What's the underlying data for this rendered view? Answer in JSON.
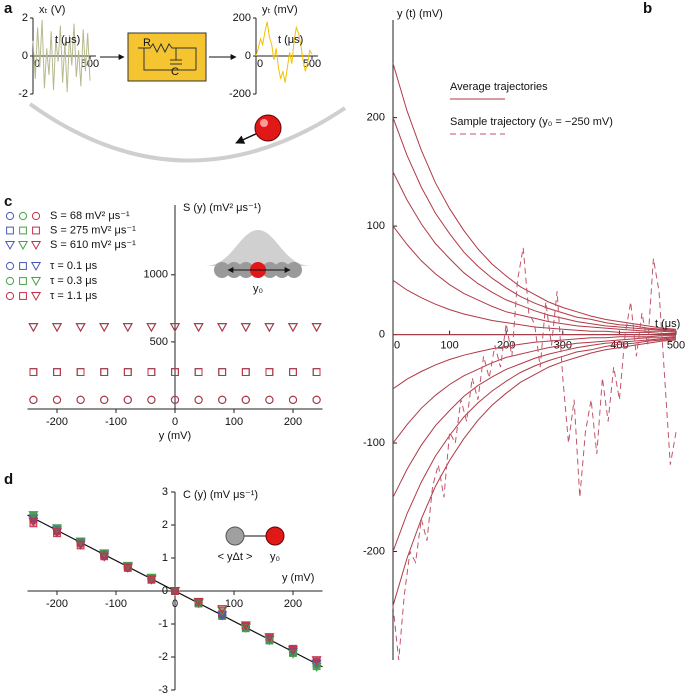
{
  "panel_labels": [
    "a",
    "b",
    "c",
    "d"
  ],
  "circuit": {
    "labels": [
      "R",
      "C"
    ]
  },
  "chart_data": [
    {
      "type": "line",
      "ylabel": "xₜ (V)",
      "xlabel": "t (μs)",
      "color": "#b7b98e",
      "x": [
        0,
        20,
        40,
        60,
        80,
        100,
        120,
        140,
        160,
        180,
        200,
        220,
        240,
        260,
        280,
        300,
        320,
        340,
        360,
        380,
        400,
        420,
        440,
        460,
        480,
        500
      ],
      "values": [
        0.8,
        -1.2,
        1.5,
        -0.6,
        1.9,
        -1.7,
        0.4,
        -1.0,
        1.3,
        -1.8,
        0.9,
        -0.3,
        1.6,
        -1.4,
        0.7,
        -1.9,
        1.1,
        -0.5,
        1.7,
        -1.1,
        0.3,
        -1.6,
        1.4,
        -0.8,
        1.2,
        -1.3
      ],
      "xlim": [
        0,
        500
      ],
      "ylim": [
        -2,
        2
      ],
      "xticks": [
        0,
        500
      ],
      "yticks": [
        -2,
        0,
        2
      ]
    },
    {
      "type": "line",
      "ylabel": "yₜ (mV)",
      "xlabel": "t (μs)",
      "color": "#f2c200",
      "x": [
        0,
        20,
        40,
        60,
        80,
        100,
        120,
        140,
        160,
        180,
        200,
        220,
        240,
        260,
        280,
        300,
        320,
        340,
        360,
        380,
        400,
        420,
        440,
        460,
        480,
        500
      ],
      "values": [
        0,
        40,
        90,
        60,
        130,
        180,
        100,
        60,
        -20,
        40,
        -60,
        -120,
        -80,
        -140,
        -60,
        20,
        -40,
        80,
        150,
        120,
        60,
        -20,
        -80,
        -40,
        30,
        10
      ],
      "xlim": [
        0,
        500
      ],
      "ylim": [
        -200,
        200
      ],
      "xticks": [
        0,
        500
      ],
      "yticks": [
        -200,
        0,
        200
      ]
    },
    {
      "type": "line",
      "ylabel": "y (t) (mV)",
      "xlabel": "t (μs)",
      "x": [
        0,
        25,
        50,
        75,
        100,
        125,
        150,
        175,
        200,
        225,
        250,
        275,
        300,
        325,
        350,
        375,
        400,
        425,
        450,
        475,
        500
      ],
      "xlim": [
        0,
        500
      ],
      "ylim": [
        -300,
        290
      ],
      "xticks": [
        0,
        100,
        200,
        300,
        400,
        500
      ],
      "yticks": [
        -200,
        -100,
        0,
        100,
        200
      ],
      "series": [
        {
          "name": "Average trajectories",
          "color": "#b03a48",
          "trajectories": [
            [
              250,
              206,
              170,
              140,
              116,
              96,
              79,
              65,
              54,
              44,
              37,
              30,
              25,
              21,
              17,
              14,
              12,
              10,
              8,
              6,
              5
            ],
            [
              200,
              165,
              136,
              112,
              93,
              76,
              63,
              52,
              43,
              35,
              29,
              24,
              20,
              16,
              14,
              11,
              9,
              8,
              6,
              5,
              4
            ],
            [
              150,
              124,
              102,
              84,
              70,
              57,
              47,
              39,
              32,
              27,
              22,
              18,
              15,
              12,
              10,
              8,
              7,
              6,
              5,
              4,
              3
            ],
            [
              100,
              83,
              68,
              56,
              46,
              38,
              32,
              26,
              21,
              18,
              15,
              12,
              10,
              8,
              7,
              6,
              5,
              4,
              3,
              3,
              2
            ],
            [
              50,
              41,
              34,
              28,
              23,
              19,
              16,
              13,
              11,
              9,
              7,
              6,
              5,
              4,
              3,
              3,
              2,
              2,
              2,
              1,
              1
            ],
            [
              0,
              0,
              0,
              0,
              0,
              0,
              0,
              0,
              0,
              0,
              0,
              0,
              0,
              0,
              0,
              0,
              0,
              0,
              0,
              0,
              0
            ],
            [
              -50,
              -41,
              -34,
              -28,
              -23,
              -19,
              -16,
              -13,
              -11,
              -9,
              -7,
              -6,
              -5,
              -4,
              -3,
              -3,
              -2,
              -2,
              -2,
              -1,
              -1
            ],
            [
              -100,
              -83,
              -68,
              -56,
              -46,
              -38,
              -32,
              -26,
              -21,
              -18,
              -15,
              -12,
              -10,
              -8,
              -7,
              -6,
              -5,
              -4,
              -3,
              -3,
              -2
            ],
            [
              -150,
              -124,
              -102,
              -84,
              -70,
              -57,
              -47,
              -39,
              -32,
              -27,
              -22,
              -18,
              -15,
              -12,
              -10,
              -8,
              -7,
              -6,
              -5,
              -4,
              -3
            ],
            [
              -200,
              -165,
              -136,
              -112,
              -93,
              -76,
              -63,
              -52,
              -43,
              -35,
              -29,
              -24,
              -20,
              -16,
              -14,
              -11,
              -9,
              -8,
              -6,
              -5,
              -4
            ],
            [
              -250,
              -206,
              -170,
              -140,
              -116,
              -96,
              -79,
              -65,
              -54,
              -44,
              -37,
              -30,
              -25,
              -21,
              -17,
              -14,
              -12,
              -10,
              -8,
              -6,
              -5
            ]
          ]
        },
        {
          "name": "Sample trajectory (y₀ = −250 mV)",
          "color": "#c0566a",
          "dashed": true,
          "x": [
            0,
            10,
            20,
            30,
            40,
            50,
            60,
            70,
            80,
            90,
            100,
            110,
            120,
            130,
            140,
            150,
            160,
            170,
            180,
            190,
            200,
            210,
            220,
            230,
            240,
            250,
            260,
            270,
            280,
            290,
            300,
            310,
            320,
            330,
            340,
            350,
            360,
            370,
            380,
            390,
            400,
            410,
            420,
            430,
            440,
            450,
            460,
            470,
            480,
            490,
            500
          ],
          "values": [
            -250,
            -300,
            -240,
            -200,
            -210,
            -170,
            -190,
            -140,
            -120,
            -150,
            -90,
            -100,
            -60,
            -80,
            -40,
            -60,
            -20,
            -40,
            -10,
            -30,
            10,
            -20,
            50,
            80,
            20,
            10,
            -30,
            30,
            -10,
            40,
            -40,
            -100,
            -60,
            -150,
            -90,
            -60,
            -110,
            -40,
            -80,
            -30,
            -60,
            0,
            30,
            -20,
            20,
            -10,
            70,
            40,
            -40,
            -120,
            -90
          ]
        }
      ]
    },
    {
      "type": "scatter",
      "ylabel": "S (y) (mV² μs⁻¹)",
      "xlabel": "y (mV)",
      "inset_label": "y₀",
      "x": [
        -240,
        -200,
        -160,
        -120,
        -80,
        -40,
        0,
        40,
        80,
        120,
        160,
        200,
        240
      ],
      "xlim": [
        -250,
        250
      ],
      "ylim": [
        0,
        1520
      ],
      "xticks": [
        -200,
        -100,
        0,
        100,
        200
      ],
      "yticks": [
        500,
        1000
      ],
      "marker_legend": [
        {
          "label": "S = 68 mV² μs⁻¹",
          "marker": "circle"
        },
        {
          "label": "S = 275 mV² μs⁻¹",
          "marker": "square"
        },
        {
          "label": "S = 610 mV² μs⁻¹",
          "marker": "triangle"
        }
      ],
      "color_legend": [
        {
          "label": "τ = 0.1 μs",
          "color": "#4a58b8"
        },
        {
          "label": "τ = 0.3 μs",
          "color": "#46a046"
        },
        {
          "label": "τ = 1.1 μs",
          "color": "#c0304a"
        }
      ],
      "series": [
        {
          "marker": "circle",
          "color": "#4a58b8",
          "values": [
            68,
            68,
            68,
            68,
            68,
            68,
            68,
            68,
            68,
            68,
            68,
            68,
            68
          ]
        },
        {
          "marker": "circle",
          "color": "#46a046",
          "values": [
            68,
            68,
            68,
            68,
            68,
            68,
            68,
            68,
            68,
            68,
            68,
            68,
            68
          ]
        },
        {
          "marker": "circle",
          "color": "#c0304a",
          "values": [
            68,
            68,
            68,
            68,
            68,
            68,
            68,
            68,
            68,
            68,
            68,
            68,
            68
          ]
        },
        {
          "marker": "square",
          "color": "#4a58b8",
          "values": [
            275,
            275,
            275,
            275,
            275,
            275,
            275,
            275,
            275,
            275,
            275,
            275,
            275
          ]
        },
        {
          "marker": "square",
          "color": "#46a046",
          "values": [
            275,
            275,
            275,
            275,
            275,
            275,
            275,
            275,
            275,
            275,
            275,
            275,
            275
          ]
        },
        {
          "marker": "square",
          "color": "#c0304a",
          "values": [
            275,
            275,
            275,
            275,
            275,
            275,
            275,
            275,
            275,
            275,
            275,
            275,
            275
          ]
        },
        {
          "marker": "triangle",
          "color": "#4a58b8",
          "values": [
            610,
            610,
            610,
            610,
            610,
            610,
            610,
            610,
            610,
            610,
            610,
            610,
            610
          ]
        },
        {
          "marker": "triangle",
          "color": "#46a046",
          "values": [
            610,
            610,
            610,
            610,
            610,
            610,
            610,
            610,
            610,
            610,
            610,
            610,
            610
          ]
        },
        {
          "marker": "triangle",
          "color": "#c0304a",
          "values": [
            610,
            610,
            610,
            610,
            610,
            610,
            610,
            610,
            610,
            610,
            610,
            610,
            610
          ]
        }
      ]
    },
    {
      "type": "scatter",
      "ylabel": "C (y) (mV μs⁻¹)",
      "xlabel": "y (mV)",
      "inset_labels": [
        "< yΔt >",
        "y₀"
      ],
      "x": [
        -240,
        -200,
        -160,
        -120,
        -80,
        -40,
        0,
        40,
        80,
        120,
        160,
        200,
        240
      ],
      "xlim": [
        -250,
        250
      ],
      "ylim": [
        -3,
        3
      ],
      "xticks": [
        -200,
        -100,
        0,
        100,
        200
      ],
      "yticks": [
        -3,
        -2,
        -1,
        0,
        1,
        2,
        3
      ],
      "fit": {
        "x": [
          -250,
          250
        ],
        "values": [
          2.3,
          -2.3
        ],
        "color": "#111111"
      },
      "series": [
        {
          "marker": "circle",
          "color": "#4a58b8",
          "values": [
            2.2,
            1.84,
            1.47,
            1.1,
            0.74,
            0.37,
            0,
            -0.37,
            -0.74,
            -1.1,
            -1.47,
            -1.84,
            -2.2
          ]
        },
        {
          "marker": "circle",
          "color": "#46a046",
          "values": [
            2.25,
            1.86,
            1.45,
            1.12,
            0.72,
            0.38,
            0,
            -0.36,
            -0.75,
            -1.12,
            -1.48,
            -1.86,
            -2.25
          ]
        },
        {
          "marker": "circle",
          "color": "#c0304a",
          "values": [
            2.15,
            1.8,
            1.44,
            1.07,
            0.7,
            0.35,
            0,
            -0.35,
            -0.72,
            -1.05,
            -1.44,
            -1.8,
            -2.15
          ]
        },
        {
          "marker": "square",
          "color": "#4a58b8",
          "values": [
            2.2,
            1.85,
            1.48,
            1.1,
            0.74,
            0.37,
            0,
            -0.37,
            -0.74,
            -1.1,
            -1.48,
            -1.85,
            -2.2
          ]
        },
        {
          "marker": "square",
          "color": "#46a046",
          "values": [
            2.28,
            1.88,
            1.5,
            1.13,
            0.76,
            0.38,
            0,
            -0.38,
            -0.76,
            -1.13,
            -1.5,
            -1.88,
            -2.28
          ]
        },
        {
          "marker": "square",
          "color": "#c0304a",
          "values": [
            2.05,
            1.75,
            1.38,
            1.05,
            0.7,
            0.34,
            0,
            -0.34,
            -0.7,
            -1.05,
            -1.4,
            -1.75,
            -2.1
          ]
        },
        {
          "marker": "triangle",
          "color": "#4a58b8",
          "values": [
            2.2,
            1.84,
            1.46,
            1.1,
            0.74,
            0.36,
            0,
            -0.37,
            -0.74,
            -1.1,
            -1.47,
            -1.84,
            -2.2
          ]
        },
        {
          "marker": "triangle",
          "color": "#46a046",
          "values": [
            2.3,
            1.9,
            1.5,
            1.14,
            0.76,
            0.4,
            0,
            -0.38,
            -0.6,
            -1.12,
            -1.5,
            -1.9,
            -2.3
          ]
        },
        {
          "marker": "triangle",
          "color": "#c0304a",
          "values": [
            2.1,
            1.78,
            1.4,
            1.04,
            0.7,
            0.34,
            0,
            -0.33,
            -0.55,
            -1.04,
            -1.4,
            -1.78,
            -2.1
          ]
        }
      ]
    }
  ]
}
